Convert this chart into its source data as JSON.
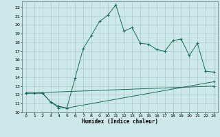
{
  "title": "",
  "xlabel": "Humidex (Indice chaleur)",
  "ylabel": "",
  "bg_color": "#cce8e8",
  "grid_color": "#aacccc",
  "line_color": "#1a6b5a",
  "xlim": [
    -0.5,
    23.5
  ],
  "ylim": [
    10.0,
    22.7
  ],
  "yticks": [
    10,
    11,
    12,
    13,
    14,
    15,
    16,
    17,
    18,
    19,
    20,
    21,
    22
  ],
  "xticks": [
    0,
    1,
    2,
    3,
    4,
    5,
    6,
    7,
    8,
    9,
    10,
    11,
    12,
    13,
    14,
    15,
    16,
    17,
    18,
    19,
    20,
    21,
    22,
    23
  ],
  "line1_x": [
    0,
    1,
    2,
    3,
    4,
    5,
    6,
    7,
    8,
    9,
    10,
    11,
    12,
    13,
    14,
    15,
    16,
    17,
    18,
    19,
    20,
    21,
    22,
    23
  ],
  "line1_y": [
    12.2,
    12.2,
    12.2,
    11.2,
    10.7,
    10.5,
    13.9,
    17.3,
    18.8,
    20.4,
    21.1,
    22.3,
    19.3,
    19.7,
    17.9,
    17.8,
    17.2,
    17.0,
    18.2,
    18.4,
    16.5,
    17.9,
    14.7,
    14.6
  ],
  "line2_x": [
    0,
    2,
    3,
    4,
    5,
    23
  ],
  "line2_y": [
    12.2,
    12.2,
    11.2,
    10.5,
    10.5,
    13.5
  ],
  "line3_x": [
    0,
    23
  ],
  "line3_y": [
    12.2,
    13.0
  ]
}
